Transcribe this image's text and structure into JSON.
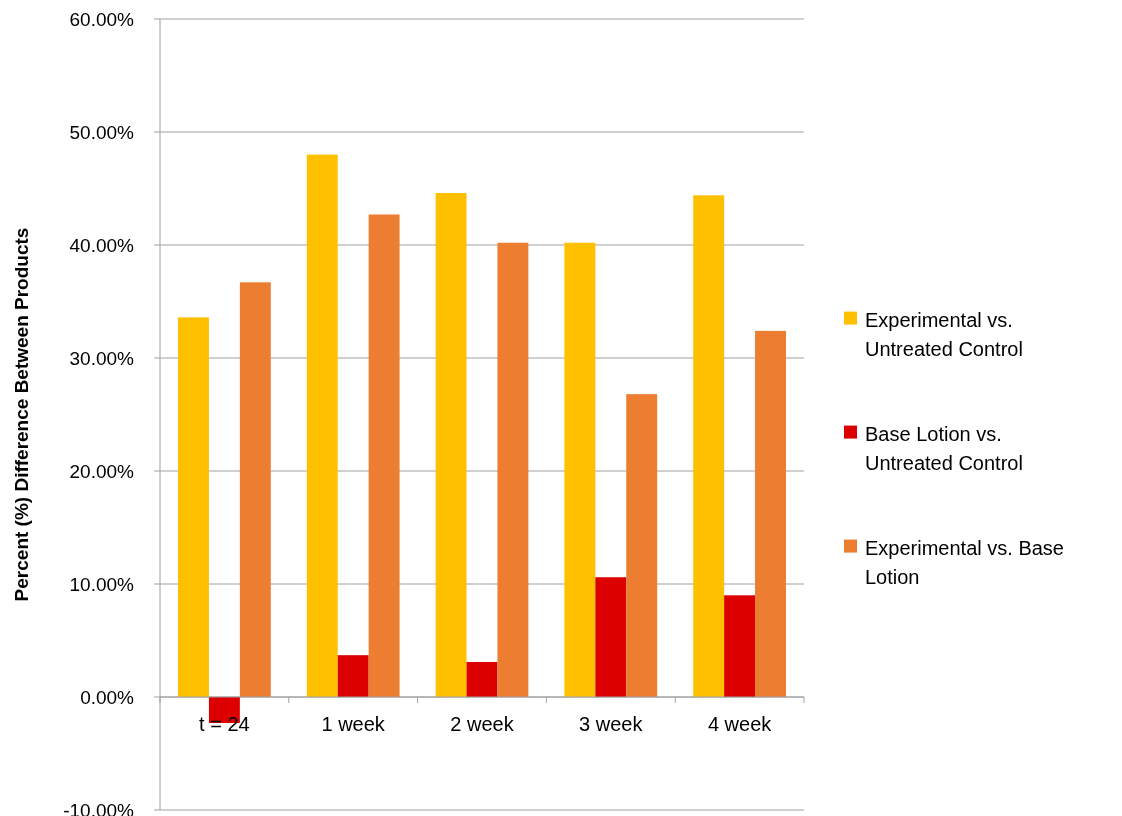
{
  "chart_data": {
    "type": "bar",
    "ylabel": "Percent (%) Difference Between Products",
    "categories": [
      "t = 24",
      "1 week",
      "2 week",
      "3 week",
      "4 week"
    ],
    "series": [
      {
        "name": "Experimental vs. Untreated Control",
        "color": "#ffc000",
        "values": [
          33.6,
          48.0,
          44.6,
          40.2,
          44.4
        ]
      },
      {
        "name": "Base Lotion vs. Untreated Control",
        "color": "#dd0000",
        "values": [
          -2.3,
          3.7,
          3.1,
          10.6,
          9.0
        ]
      },
      {
        "name": "Experimental vs. Base Lotion",
        "color": "#ed7d31",
        "values": [
          36.7,
          42.7,
          40.2,
          26.8,
          32.4
        ]
      }
    ],
    "ylim": [
      -10,
      60
    ],
    "yticks": [
      {
        "value": -10,
        "label": "-10.00%"
      },
      {
        "value": 0,
        "label": "0.00%"
      },
      {
        "value": 10,
        "label": "10.00%"
      },
      {
        "value": 20,
        "label": "20.00%"
      },
      {
        "value": 30,
        "label": "30.00%"
      },
      {
        "value": 40,
        "label": "40.00%"
      },
      {
        "value": 50,
        "label": "50.00%"
      },
      {
        "value": 60,
        "label": "60.00%"
      }
    ],
    "grid": "y",
    "legend": "right"
  }
}
